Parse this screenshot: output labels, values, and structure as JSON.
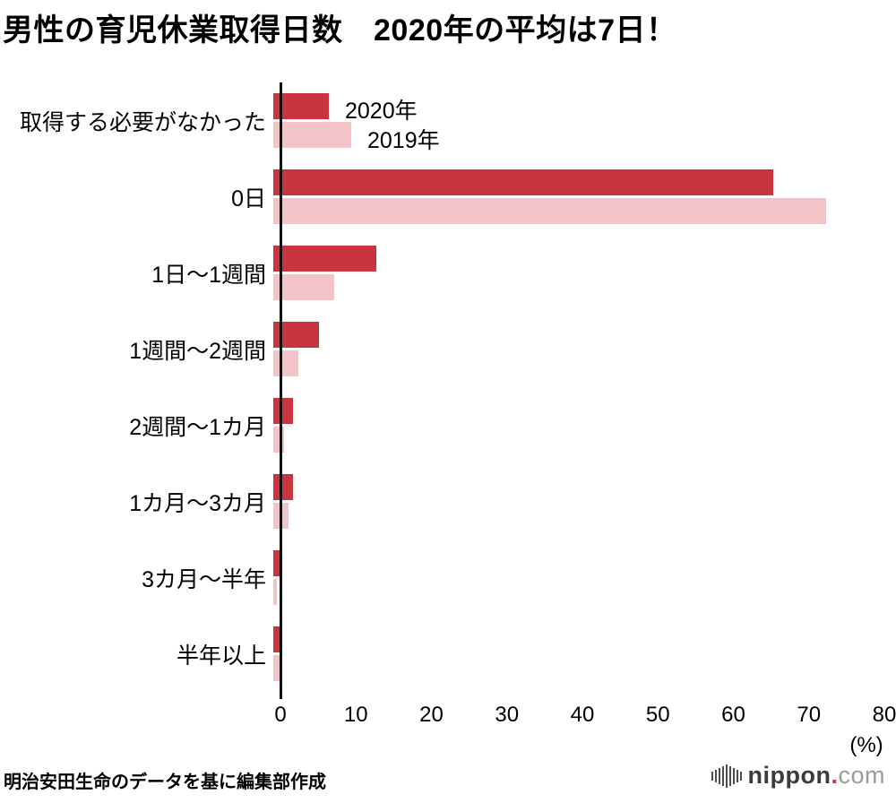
{
  "title": "男性の育児休業取得日数　2020年の平均は7日！",
  "source": "明治安田生命のデータを基に編集部作成",
  "logo": {
    "name": "nippon",
    "dot": ".",
    "tld": "com"
  },
  "colors": {
    "bar_2020": "#c8353f",
    "bar_2019": "#f2c3c7",
    "axis": "#111111"
  },
  "chart_data": {
    "type": "bar",
    "orientation": "horizontal",
    "title": "男性の育児休業取得日数　2020年の平均は7日！",
    "categories": [
      "取得する必要がなかった",
      "0日",
      "1日〜1週間",
      "1週間〜2週間",
      "2週間〜1カ月",
      "1カ月〜3カ月",
      "3カ月〜半年",
      "半年以上"
    ],
    "series": [
      {
        "name": "2020年",
        "color": "#c8353f",
        "values": [
          7.4,
          66.4,
          13.7,
          6.1,
          2.6,
          2.6,
          1.0,
          1.1
        ]
      },
      {
        "name": "2019年",
        "color": "#f2c3c7",
        "values": [
          10.4,
          73.5,
          8.1,
          3.3,
          1.4,
          2.0,
          0.5,
          0.8
        ]
      }
    ],
    "x_ticks": [
      0,
      10,
      20,
      30,
      40,
      50,
      60,
      70,
      80
    ],
    "xlim": [
      0,
      80
    ],
    "xlabel": "(%)",
    "grid": false,
    "legend_position": "beside-first-bar-group"
  },
  "logo_bar_heights": [
    10,
    14,
    18,
    22,
    26,
    22,
    18,
    14,
    10
  ]
}
